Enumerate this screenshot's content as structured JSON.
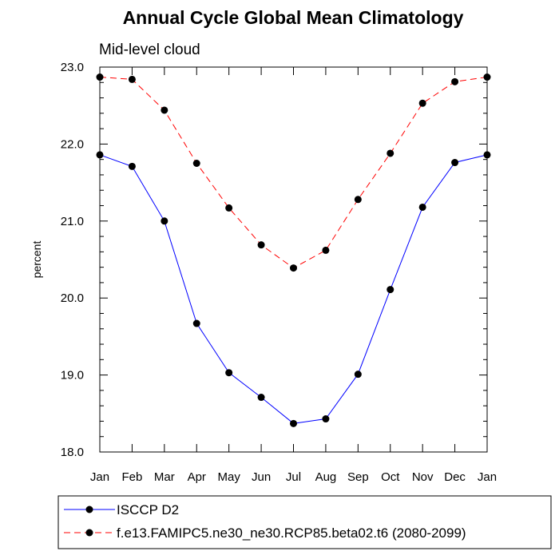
{
  "chart_data": {
    "type": "line",
    "title": "Annual Cycle Global Mean Climatology",
    "subtitle": "Mid-level cloud",
    "xlabel": "",
    "ylabel": "percent",
    "ylim": [
      18.0,
      23.0
    ],
    "yticks": [
      "18.0",
      "19.0",
      "20.0",
      "21.0",
      "22.0",
      "23.0"
    ],
    "ytick_values": [
      18.0,
      19.0,
      20.0,
      21.0,
      22.0,
      23.0
    ],
    "categories": [
      "Jan",
      "Feb",
      "Mar",
      "Apr",
      "May",
      "Jun",
      "Jul",
      "Aug",
      "Sep",
      "Oct",
      "Nov",
      "Dec",
      "Jan"
    ],
    "grid": false,
    "legend_position": "bottom",
    "series": [
      {
        "name": "ISCCP D2",
        "color": "#0000ff",
        "dashed": false,
        "values": [
          21.86,
          21.71,
          21.0,
          19.67,
          19.03,
          18.71,
          18.37,
          18.43,
          19.01,
          20.11,
          21.18,
          21.76,
          21.86
        ]
      },
      {
        "name": "f.e13.FAMIPC5.ne30_ne30.RCP85.beta02.t6 (2080-2099)",
        "color": "#ff0000",
        "dashed": true,
        "values": [
          22.87,
          22.84,
          22.44,
          21.75,
          21.17,
          20.69,
          20.39,
          20.62,
          21.28,
          21.88,
          22.53,
          22.81,
          22.87
        ]
      }
    ]
  }
}
